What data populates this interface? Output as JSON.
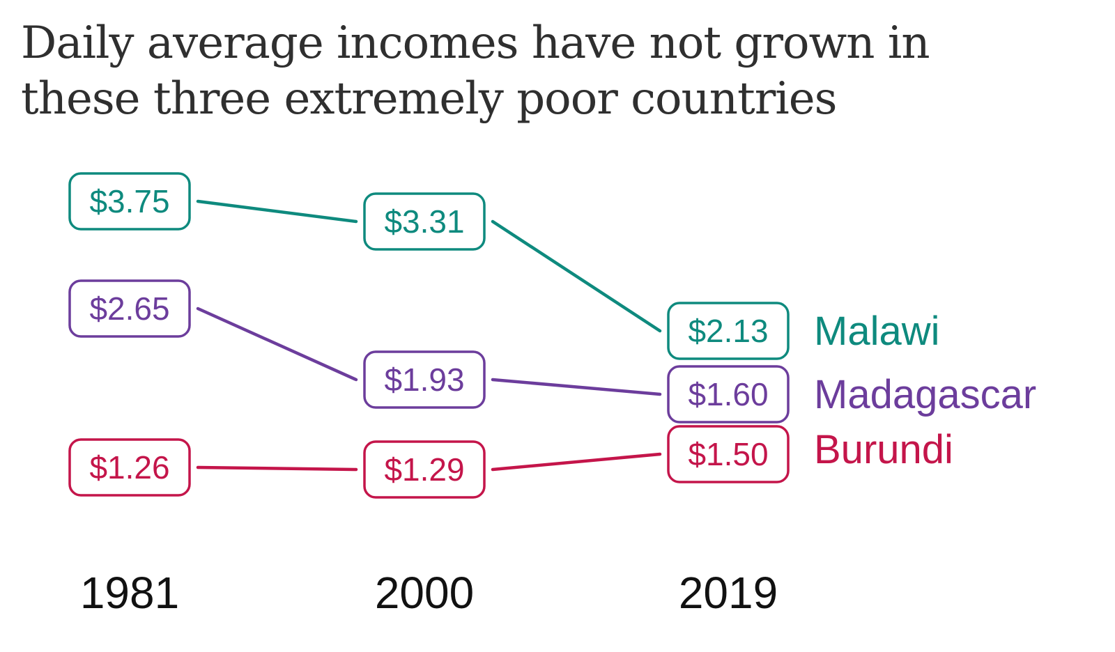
{
  "chart_data": {
    "type": "line",
    "title_lines": [
      "Daily average incomes have not grown in",
      "these three extremely poor countries"
    ],
    "x": [
      "1981",
      "2000",
      "2019"
    ],
    "series": [
      {
        "name": "Malawi",
        "color": "#0e8a7e",
        "values": [
          3.75,
          3.31,
          2.13
        ],
        "labels": [
          "$3.75",
          "$3.31",
          "$2.13"
        ]
      },
      {
        "name": "Madagascar",
        "color": "#6c3d9c",
        "values": [
          2.65,
          1.93,
          1.6
        ],
        "labels": [
          "$2.65",
          "$1.93",
          "$1.60"
        ]
      },
      {
        "name": "Burundi",
        "color": "#c4154a",
        "values": [
          1.26,
          1.29,
          1.5
        ],
        "labels": [
          "$1.26",
          "$1.29",
          "$1.50"
        ]
      }
    ],
    "ylabel": "",
    "xlabel": "",
    "grid": false
  }
}
